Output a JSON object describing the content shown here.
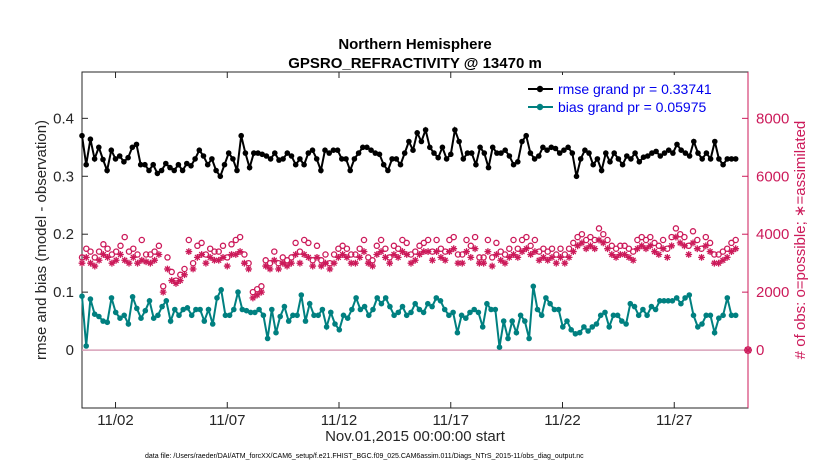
{
  "chart_data": {
    "type": "line",
    "title": "Northern Hemisphere",
    "subtitle": "GPSRO_REFRACTIVITY @ 13470 m",
    "xlabel": "Nov.01,2015 00:00:00 start",
    "ylabel_left": "rmse and bias (model - observation)",
    "ylabel_right": "# of obs: o=possible; ∗=assimilated",
    "footnote": "data file: /Users/raeder/DAI/ATM_forcXX/CAM6_setup/f.e21.FHIST_BGC.f09_025.CAM6assim.011/Diags_NTrS_2015-11/obs_diag_output.nc",
    "x_ticks": [
      "11/02",
      "11/07",
      "11/12",
      "11/17",
      "11/22",
      "11/27"
    ],
    "y_left_ticks": [
      "0",
      "0.1",
      "0.2",
      "0.3",
      "0.4"
    ],
    "y_right_ticks": [
      "0",
      "2000",
      "4000",
      "6000",
      "8000"
    ],
    "ylim_left": [
      -0.1,
      0.48
    ],
    "ylim_right": [
      -2000,
      9600
    ],
    "xlim_days": [
      0.5,
      30.3
    ],
    "series": [
      {
        "name": "rmse grand pr = 0.33741",
        "color": "#000000",
        "axis": "left",
        "values": [
          0.37,
          0.32,
          0.364,
          0.33,
          0.35,
          0.329,
          0.31,
          0.345,
          0.33,
          0.335,
          0.325,
          0.332,
          0.35,
          0.355,
          0.32,
          0.32,
          0.31,
          0.32,
          0.305,
          0.31,
          0.322,
          0.315,
          0.31,
          0.32,
          0.31,
          0.322,
          0.318,
          0.33,
          0.345,
          0.335,
          0.32,
          0.33,
          0.31,
          0.3,
          0.32,
          0.34,
          0.33,
          0.31,
          0.37,
          0.34,
          0.315,
          0.34,
          0.34,
          0.338,
          0.335,
          0.33,
          0.34,
          0.328,
          0.33,
          0.34,
          0.335,
          0.32,
          0.33,
          0.32,
          0.34,
          0.345,
          0.33,
          0.31,
          0.345,
          0.34,
          0.345,
          0.345,
          0.33,
          0.33,
          0.31,
          0.33,
          0.34,
          0.35,
          0.35,
          0.345,
          0.34,
          0.338,
          0.32,
          0.31,
          0.33,
          0.33,
          0.32,
          0.34,
          0.36,
          0.345,
          0.375,
          0.36,
          0.38,
          0.35,
          0.34,
          0.332,
          0.35,
          0.33,
          0.338,
          0.38,
          0.36,
          0.33,
          0.34,
          0.34,
          0.32,
          0.35,
          0.34,
          0.315,
          0.35,
          0.34,
          0.34,
          0.345,
          0.335,
          0.32,
          0.325,
          0.36,
          0.37,
          0.34,
          0.33,
          0.335,
          0.35,
          0.345,
          0.35,
          0.348,
          0.34,
          0.345,
          0.35,
          0.34,
          0.3,
          0.33,
          0.345,
          0.34,
          0.32,
          0.33,
          0.31,
          0.34,
          0.325,
          0.34,
          0.33,
          0.32,
          0.335,
          0.33,
          0.34,
          0.325,
          0.333,
          0.335,
          0.34,
          0.343,
          0.335,
          0.34,
          0.345,
          0.34,
          0.355,
          0.345,
          0.34,
          0.335,
          0.36,
          0.34,
          0.33,
          0.34,
          0.33,
          0.36,
          0.33,
          0.32,
          0.33,
          0.33,
          0.33
        ]
      },
      {
        "name": "bias grand pr = 0.05975",
        "color": "#008080",
        "axis": "left",
        "values": [
          0.093,
          0.007,
          0.088,
          0.062,
          0.058,
          0.05,
          0.048,
          0.09,
          0.065,
          0.055,
          0.06,
          0.045,
          0.092,
          0.072,
          0.055,
          0.068,
          0.085,
          0.055,
          0.06,
          0.075,
          0.085,
          0.05,
          0.07,
          0.06,
          0.07,
          0.073,
          0.06,
          0.07,
          0.07,
          0.05,
          0.07,
          0.045,
          0.09,
          0.104,
          0.06,
          0.06,
          0.07,
          0.1,
          0.07,
          0.068,
          0.065,
          0.065,
          0.07,
          0.06,
          0.02,
          0.07,
          0.03,
          0.058,
          0.075,
          0.05,
          0.06,
          0.06,
          0.095,
          0.05,
          0.08,
          0.06,
          0.06,
          0.07,
          0.04,
          0.065,
          0.045,
          0.035,
          0.06,
          0.055,
          0.07,
          0.09,
          0.07,
          0.075,
          0.06,
          0.07,
          0.09,
          0.08,
          0.09,
          0.075,
          0.06,
          0.065,
          0.075,
          0.06,
          0.065,
          0.08,
          0.07,
          0.065,
          0.08,
          0.075,
          0.09,
          0.085,
          0.07,
          0.06,
          0.065,
          0.03,
          0.06,
          0.055,
          0.065,
          0.07,
          0.065,
          0.04,
          0.08,
          0.07,
          0.07,
          0.005,
          0.05,
          0.02,
          0.05,
          0.03,
          0.06,
          0.05,
          0.02,
          0.11,
          0.07,
          0.06,
          0.09,
          0.08,
          0.07,
          0.07,
          0.04,
          0.05,
          0.035,
          0.028,
          0.03,
          0.04,
          0.033,
          0.04,
          0.045,
          0.06,
          0.065,
          0.04,
          0.06,
          0.06,
          0.05,
          0.045,
          0.08,
          0.075,
          0.06,
          0.07,
          0.06,
          0.075,
          0.07,
          0.085,
          0.085,
          0.085,
          0.085,
          0.09,
          0.08,
          0.09,
          0.095,
          0.06,
          0.04,
          0.045,
          0.06,
          0.06,
          0.03,
          0.055,
          0.06,
          0.09,
          0.06,
          0.06
        ]
      },
      {
        "name": "possible obs",
        "color": "#cc1a5a",
        "axis": "right",
        "marker": "o",
        "values": [
          3200,
          3500,
          3400,
          3200,
          3400,
          3650,
          3500,
          3300,
          3400,
          3600,
          3900,
          3400,
          3500,
          3300,
          3800,
          3300,
          3300,
          3400,
          3600,
          2200,
          3200,
          2700,
          2400,
          2600,
          2800,
          3800,
          3000,
          3600,
          3700,
          3300,
          3500,
          3400,
          3400,
          3600,
          3200,
          3650,
          3800,
          3900,
          3300,
          3000,
          2000,
          2100,
          2200,
          3100,
          3000,
          3400,
          3000,
          3200,
          3100,
          3200,
          3700,
          3400,
          3800,
          3700,
          3100,
          3600,
          3100,
          3300,
          3000,
          3300,
          3500,
          3600,
          3500,
          3300,
          3300,
          3500,
          3800,
          3200,
          3100,
          3600,
          3800,
          3500,
          3200,
          3600,
          3500,
          3800,
          3700,
          3300,
          3400,
          3600,
          3700,
          3800,
          3400,
          3800,
          3500,
          3400,
          3800,
          3900,
          3300,
          3300,
          3800,
          3600,
          3900,
          3200,
          3200,
          3800,
          3200,
          3700,
          3400,
          3300,
          3500,
          3800,
          3500,
          3800,
          3900,
          3600,
          3800,
          3400,
          3500,
          3400,
          3500,
          3300,
          3500,
          3300,
          3500,
          3700,
          3900,
          4000,
          3800,
          3900,
          3800,
          4200,
          4000,
          3800,
          3600,
          3500,
          3600,
          3600,
          3500,
          3400,
          3800,
          3900,
          3800,
          3900,
          3700,
          3600,
          3800,
          3500,
          3900,
          4200,
          4000,
          3900,
          3600,
          4100,
          3800,
          3500,
          3900,
          3700,
          3300,
          3300,
          3400,
          3500,
          3700,
          3800
        ]
      },
      {
        "name": "assimilated obs",
        "color": "#cc1a5a",
        "axis": "right",
        "marker": "*",
        "values": [
          3000,
          3200,
          3000,
          2900,
          3100,
          3300,
          3200,
          3000,
          3100,
          3300,
          3100,
          3000,
          3200,
          3000,
          3100,
          3050,
          3000,
          3100,
          3300,
          2000,
          2800,
          2400,
          2300,
          2400,
          2600,
          3400,
          2800,
          3200,
          3300,
          3000,
          3200,
          3100,
          3100,
          3200,
          2900,
          3300,
          3300,
          3400,
          3000,
          2800,
          1800,
          1900,
          2000,
          2900,
          2800,
          3100,
          2800,
          3000,
          2900,
          3000,
          3300,
          3000,
          3300,
          3200,
          2900,
          3200,
          2900,
          3000,
          2800,
          3000,
          3200,
          3300,
          3200,
          3000,
          3000,
          3200,
          3400,
          3000,
          2900,
          3300,
          3400,
          3200,
          3000,
          3300,
          3200,
          3400,
          3300,
          3000,
          3100,
          3300,
          3400,
          3400,
          3100,
          3400,
          3200,
          3100,
          3400,
          3500,
          3000,
          3000,
          3400,
          3200,
          3500,
          3000,
          3000,
          3400,
          2900,
          3300,
          3100,
          3000,
          3200,
          3300,
          3200,
          3400,
          3500,
          3300,
          3400,
          3100,
          3200,
          3100,
          3200,
          3000,
          3200,
          3000,
          3200,
          3400,
          3600,
          3700,
          3500,
          3600,
          3500,
          3800,
          3700,
          3500,
          3300,
          3200,
          3300,
          3300,
          3200,
          3100,
          3500,
          3600,
          3500,
          3600,
          3400,
          3300,
          3500,
          3200,
          3600,
          3900,
          3700,
          3600,
          3300,
          3700,
          3500,
          3200,
          3600,
          3400,
          3000,
          3000,
          3100,
          3200,
          3400,
          3500
        ]
      }
    ],
    "end_marker_right": 0,
    "legend": {
      "position": "top-right",
      "entries": [
        "rmse grand pr = 0.33741",
        "bias grand pr = 0.05975"
      ]
    },
    "colors": {
      "rmse": "#000000",
      "bias": "#008080",
      "obs": "#cc1a5a",
      "legend_text": "#0000ee",
      "zero_line": "#d8a0b8"
    }
  }
}
